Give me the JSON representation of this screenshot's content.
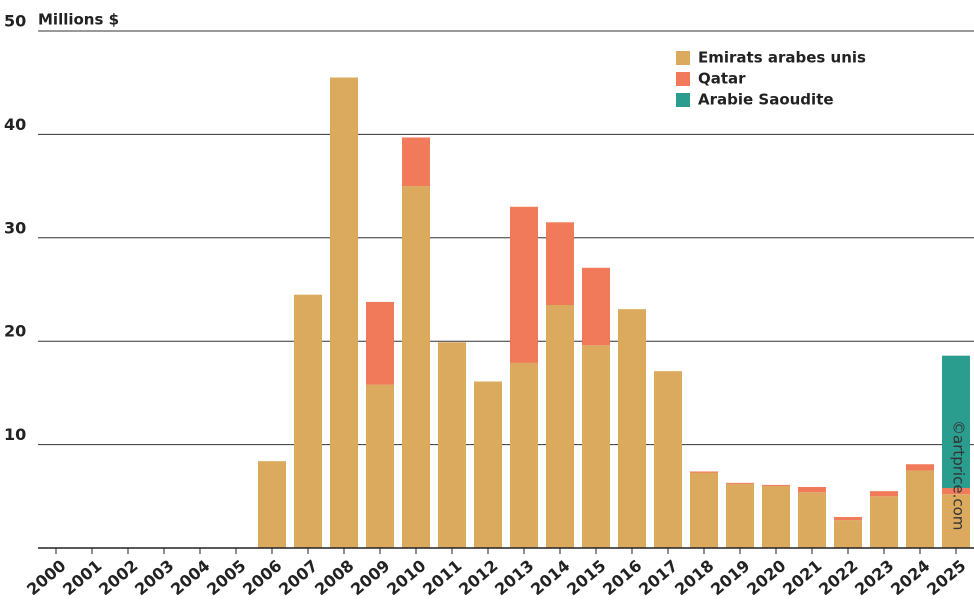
{
  "chart_data": {
    "type": "stacked_bar",
    "y_label": "Millions $",
    "watermark": "©artprice.com",
    "categories": [
      "2000",
      "2001",
      "2002",
      "2003",
      "2004",
      "2005",
      "2006",
      "2007",
      "2008",
      "2009",
      "2010",
      "2011",
      "2012",
      "2013",
      "2014",
      "2015",
      "2016",
      "2017",
      "2018",
      "2019",
      "2020",
      "2021",
      "2022",
      "2023",
      "2024",
      "2025"
    ],
    "series": [
      {
        "name": "Emirats arabes unis",
        "color": "#dcaa5f",
        "values": [
          0,
          0,
          0,
          0,
          0,
          0,
          8.4,
          24.5,
          45.5,
          15.8,
          35.0,
          19.9,
          16.1,
          17.9,
          23.5,
          19.6,
          23.1,
          17.1,
          7.3,
          6.2,
          6.0,
          5.4,
          2.7,
          5.0,
          7.5,
          5.2
        ]
      },
      {
        "name": "Qatar",
        "color": "#f07a5a",
        "values": [
          0,
          0,
          0,
          0,
          0,
          0,
          0,
          0,
          0,
          8.0,
          4.7,
          0,
          0,
          15.1,
          8.0,
          7.5,
          0,
          0,
          0.1,
          0.1,
          0.1,
          0.5,
          0.3,
          0.5,
          0.6,
          0.6
        ]
      },
      {
        "name": "Arabie Saoudite",
        "color": "#2a9d8f",
        "values": [
          0,
          0,
          0,
          0,
          0,
          0,
          0,
          0,
          0,
          0,
          0,
          0,
          0,
          0,
          0,
          0,
          0,
          0,
          0,
          0,
          0,
          0,
          0,
          0,
          0,
          12.8
        ]
      }
    ],
    "ylim": [
      0,
      50
    ],
    "yticks": [
      10,
      20,
      30,
      40,
      50
    ],
    "grid": true,
    "legend": "upper right"
  }
}
